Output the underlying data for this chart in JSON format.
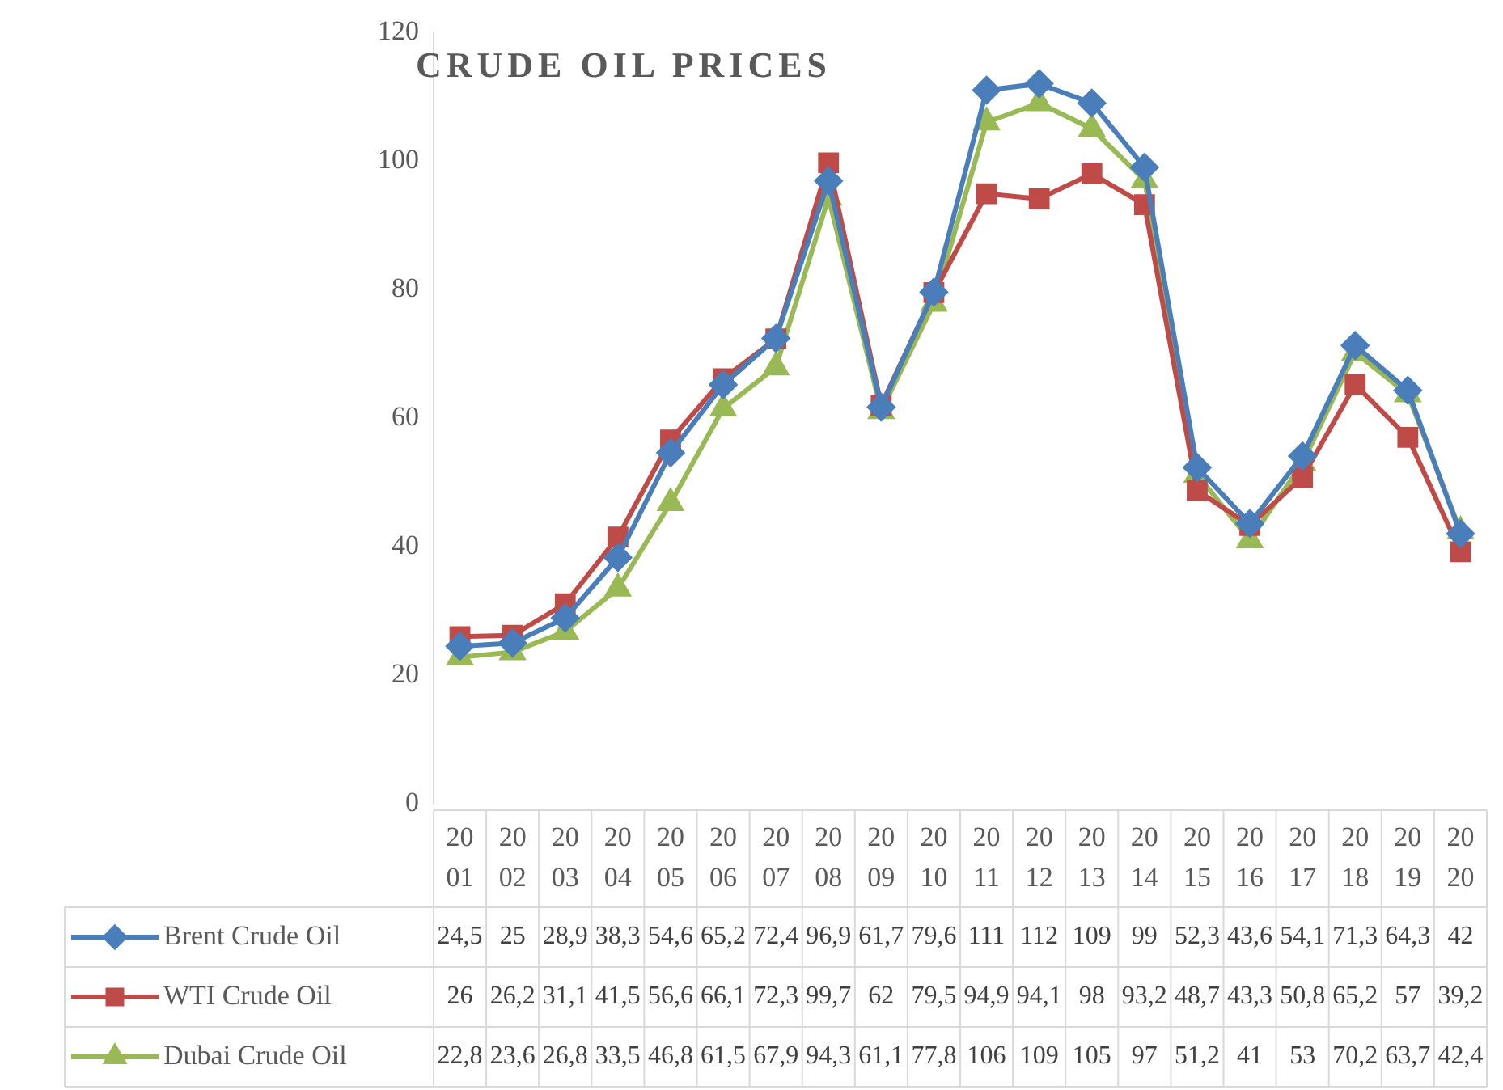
{
  "chart_data": {
    "type": "line",
    "title": "CRUDE OIL PRICES",
    "categories": [
      "2001",
      "2002",
      "2003",
      "2004",
      "2005",
      "2006",
      "2007",
      "2008",
      "2009",
      "2010",
      "2011",
      "2012",
      "2013",
      "2014",
      "2015",
      "2016",
      "2017",
      "2018",
      "2019",
      "2020"
    ],
    "series": [
      {
        "name": "Brent Crude Oil",
        "color": "#4a7ebb",
        "marker": "diamond",
        "values": [
          24.5,
          25,
          28.9,
          38.3,
          54.6,
          65.2,
          72.4,
          96.9,
          61.7,
          79.6,
          111,
          112,
          109,
          99,
          52.3,
          43.6,
          54.1,
          71.3,
          64.3,
          42
        ],
        "value_labels": [
          "24,5",
          "25",
          "28,9",
          "38,3",
          "54,6",
          "65,2",
          "72,4",
          "96,9",
          "61,7",
          "79,6",
          "111",
          "112",
          "109",
          "99",
          "52,3",
          "43,6",
          "54,1",
          "71,3",
          "64,3",
          "42"
        ]
      },
      {
        "name": "WTI Crude Oil",
        "color": "#be4b48",
        "marker": "square",
        "values": [
          26,
          26.2,
          31.1,
          41.5,
          56.6,
          66.1,
          72.3,
          99.7,
          62,
          79.5,
          94.9,
          94.1,
          98,
          93.2,
          48.7,
          43.3,
          50.8,
          65.2,
          57,
          39.2
        ],
        "value_labels": [
          "26",
          "26,2",
          "31,1",
          "41,5",
          "56,6",
          "66,1",
          "72,3",
          "99,7",
          "62",
          "79,5",
          "94,9",
          "94,1",
          "98",
          "93,2",
          "48,7",
          "43,3",
          "50,8",
          "65,2",
          "57",
          "39,2"
        ]
      },
      {
        "name": "Dubai Crude Oil",
        "color": "#98b954",
        "marker": "triangle",
        "values": [
          22.8,
          23.6,
          26.8,
          33.5,
          46.8,
          61.5,
          67.9,
          94.3,
          61.1,
          77.8,
          106,
          109,
          105,
          97,
          51.2,
          41,
          53,
          70.2,
          63.7,
          42.4
        ],
        "value_labels": [
          "22,8",
          "23,6",
          "26,8",
          "33,5",
          "46,8",
          "61,5",
          "67,9",
          "94,3",
          "61,1",
          "77,8",
          "106",
          "109",
          "105",
          "97",
          "51,2",
          "41",
          "53",
          "70,2",
          "63,7",
          "42,4"
        ]
      }
    ],
    "ylim": [
      0,
      120
    ],
    "yticks": [
      0,
      20,
      40,
      60,
      80,
      100,
      120
    ],
    "grid": false,
    "legend": "bottom"
  }
}
